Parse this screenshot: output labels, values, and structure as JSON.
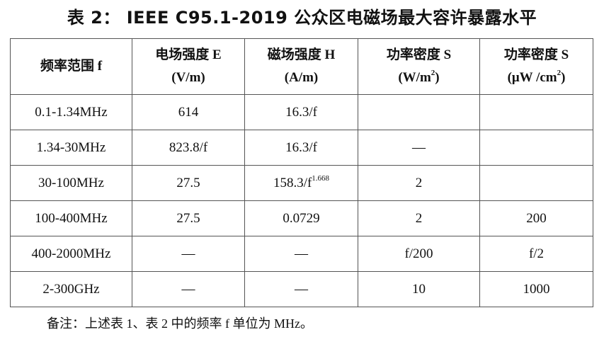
{
  "title": "表 2：  IEEE C95.1-2019   公众区电磁场最大容许暴露水平",
  "columns": [
    {
      "line1": "频率范围 f",
      "line2": ""
    },
    {
      "line1": "电场强度 E",
      "line2": "(V/m)"
    },
    {
      "line1": "磁场强度 H",
      "line2": "(A/m)"
    },
    {
      "line1": "功率密度 S",
      "line2": "(W/m",
      "sup": "2",
      "line2_end": ")"
    },
    {
      "line1": "功率密度 S",
      "line2": "(μW /cm",
      "sup": "2",
      "line2_end": ")"
    }
  ],
  "rows": [
    {
      "freq": "0.1-1.34MHz",
      "e": "614",
      "h": "16.3/f",
      "h_sup": "",
      "s": "",
      "s_uw": ""
    },
    {
      "freq": "1.34-30MHz",
      "e": "823.8/f",
      "h": "16.3/f",
      "h_sup": "",
      "s": "—",
      "s_uw": ""
    },
    {
      "freq": "30-100MHz",
      "e": "27.5",
      "h": "158.3/f",
      "h_sup": "1.668",
      "s": "2",
      "s_uw": ""
    },
    {
      "freq": "100-400MHz",
      "e": "27.5",
      "h": "0.0729",
      "h_sup": "",
      "s": "2",
      "s_uw": "200"
    },
    {
      "freq": "400-2000MHz",
      "e": "—",
      "h": "—",
      "h_sup": "",
      "s": "f/200",
      "s_uw": "f/2"
    },
    {
      "freq": "2-300GHz",
      "e": "—",
      "h": "—",
      "h_sup": "",
      "s": "10",
      "s_uw": "1000"
    }
  ],
  "note": "备注：上述表 1、表 2 中的频率 f 单位为 MHz。"
}
